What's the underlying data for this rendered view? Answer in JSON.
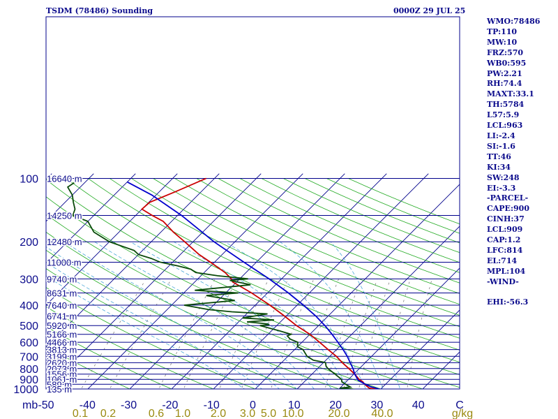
{
  "header": {
    "title": "TSDM (78486) Sounding",
    "time": "0000Z 29 JUL 25"
  },
  "stats": [
    "WMO:78486",
    "TP:110",
    "MW:10",
    "FRZ:570",
    "WB0:595",
    "PW:2.21",
    "RH:74.4",
    "MAXT:33.1",
    "TH:5784",
    "L57:5.9",
    "LCL:963",
    "LI:-2.4",
    "SI:-1.6",
    "TT:46",
    "KI:34",
    "SW:248",
    "EI:-3.3",
    "-PARCEL-",
    "CAPE:900",
    "CINH:37",
    "LCL:909",
    "CAP:1.2",
    "LFC:814",
    "EL:714",
    "MPL:104",
    "-WIND-",
    "",
    "EHI:-56.3"
  ],
  "colors": {
    "isobar": "#00008b",
    "frame": "#00008b",
    "isotherm": "#00008b",
    "dry_adiabat": "#22aa22",
    "moist_adiabat": "#4aa8d8",
    "mixing_ratio": "#707070",
    "temperature": "#cc0000",
    "dewpoint": "#0a4a0a",
    "parcel": "#0000cc",
    "text": "#0b0b8c",
    "mixing_label": "#9a8a10"
  },
  "chart_data": {
    "type": "line",
    "chart_kind": "skew-T log-p",
    "x_unit": "°C",
    "y_unit": "mb",
    "y_scale": "log",
    "ylim": [
      1000,
      100
    ],
    "xlim": [
      -50,
      50
    ],
    "x_ticks": [
      "-50",
      "-40",
      "-30",
      "-20",
      "-10",
      "0",
      "10",
      "20",
      "30",
      "40",
      "C"
    ],
    "y_axis_label": "mb",
    "pressure_ticks": [
      100,
      200,
      300,
      400,
      500,
      600,
      700,
      800,
      900,
      1000
    ],
    "isobars": [
      {
        "p": 100,
        "height": "16640 m"
      },
      {
        "p": 150,
        "height": "14250 m"
      },
      {
        "p": 200,
        "height": "12480 m"
      },
      {
        "p": 250,
        "height": "11000 m"
      },
      {
        "p": 300,
        "height": "9740 m"
      },
      {
        "p": 350,
        "height": "8631 m"
      },
      {
        "p": 400,
        "height": "7640 m"
      },
      {
        "p": 450,
        "height": "6741 m"
      },
      {
        "p": 500,
        "height": "5920 m"
      },
      {
        "p": 550,
        "height": "5166 m"
      },
      {
        "p": 600,
        "height": "4466 m"
      },
      {
        "p": 650,
        "height": "3813 m"
      },
      {
        "p": 700,
        "height": "3199 m"
      },
      {
        "p": 750,
        "height": "2620 m"
      },
      {
        "p": 800,
        "height": "2073 m"
      },
      {
        "p": 850,
        "height": "1556 m"
      },
      {
        "p": 900,
        "height": "1061 m"
      },
      {
        "p": 950,
        "height": "589 m"
      },
      {
        "p": 1000,
        "height": "135 m"
      }
    ],
    "mixing_ratio_labels": [
      "0.1",
      "0.2",
      "0.6",
      "1.0",
      "2.0",
      "3.0",
      "5.0",
      "10.0",
      "20.0",
      "40.0",
      "g/kg"
    ],
    "series": [
      {
        "name": "temperature",
        "points": [
          [
            1010,
            30
          ],
          [
            1000,
            28.5
          ],
          [
            990,
            27
          ],
          [
            970,
            26
          ],
          [
            950,
            25
          ],
          [
            925,
            24
          ],
          [
            900,
            22.5
          ],
          [
            850,
            20.2
          ],
          [
            800,
            17.5
          ],
          [
            750,
            14.5
          ],
          [
            700,
            11.6
          ],
          [
            650,
            8
          ],
          [
            600,
            4.2
          ],
          [
            550,
            0
          ],
          [
            500,
            -5.3
          ],
          [
            450,
            -10.5
          ],
          [
            400,
            -16.5
          ],
          [
            350,
            -23.8
          ],
          [
            310,
            -31
          ],
          [
            300,
            -32
          ],
          [
            280,
            -35
          ],
          [
            250,
            -41
          ],
          [
            230,
            -45.5
          ],
          [
            200,
            -52
          ],
          [
            180,
            -57
          ],
          [
            160,
            -62
          ],
          [
            150,
            -66
          ],
          [
            140,
            -70
          ],
          [
            130,
            -69.8
          ],
          [
            115,
            -66
          ],
          [
            100,
            -62
          ]
        ]
      },
      {
        "name": "dewpoint",
        "points": [
          [
            1010,
            25
          ],
          [
            1000,
            23
          ],
          [
            990,
            20
          ],
          [
            980,
            22.3
          ],
          [
            950,
            20.5
          ],
          [
            925,
            19
          ],
          [
            900,
            18.3
          ],
          [
            850,
            15.5
          ],
          [
            800,
            12.5
          ],
          [
            780,
            11.5
          ],
          [
            750,
            10.5
          ],
          [
            730,
            7
          ],
          [
            700,
            4.6
          ],
          [
            650,
            2
          ],
          [
            630,
            0
          ],
          [
            600,
            -1
          ],
          [
            580,
            -3.5
          ],
          [
            560,
            -5
          ],
          [
            550,
            -4.5
          ],
          [
            530,
            -8
          ],
          [
            500,
            -14
          ],
          [
            495,
            -12
          ],
          [
            490,
            -13
          ],
          [
            480,
            -18
          ],
          [
            470,
            -12
          ],
          [
            460,
            -20
          ],
          [
            440,
            -15
          ],
          [
            430,
            -24
          ],
          [
            420,
            -30
          ],
          [
            400,
            -37
          ],
          [
            380,
            -26
          ],
          [
            360,
            -34
          ],
          [
            350,
            -27
          ],
          [
            340,
            -38
          ],
          [
            320,
            -26
          ],
          [
            305,
            -32
          ],
          [
            300,
            -28
          ],
          [
            290,
            -36
          ],
          [
            280,
            -42
          ],
          [
            270,
            -44
          ],
          [
            260,
            -48
          ],
          [
            250,
            -53
          ],
          [
            240,
            -56
          ],
          [
            230,
            -60
          ],
          [
            220,
            -62
          ],
          [
            200,
            -70
          ],
          [
            180,
            -76
          ],
          [
            160,
            -80
          ],
          [
            150,
            -85
          ],
          [
            140,
            -86
          ],
          [
            130,
            -88
          ],
          [
            120,
            -90
          ],
          [
            110,
            -93
          ],
          [
            100,
            -92
          ]
        ]
      },
      {
        "name": "parcel",
        "points": [
          [
            1010,
            30.5
          ],
          [
            1000,
            29.5
          ],
          [
            975,
            27
          ],
          [
            950,
            25.2
          ],
          [
            909,
            22.5
          ],
          [
            850,
            20.2
          ],
          [
            800,
            18.5
          ],
          [
            750,
            16.4
          ],
          [
            700,
            14.2
          ],
          [
            650,
            11.6
          ],
          [
            600,
            8.6
          ],
          [
            550,
            5.3
          ],
          [
            500,
            1.5
          ],
          [
            450,
            -3
          ],
          [
            400,
            -8.5
          ],
          [
            350,
            -15
          ],
          [
            300,
            -23
          ],
          [
            250,
            -33
          ],
          [
            200,
            -45
          ],
          [
            150,
            -59
          ],
          [
            120,
            -71
          ],
          [
            104,
            -80
          ]
        ]
      }
    ]
  }
}
